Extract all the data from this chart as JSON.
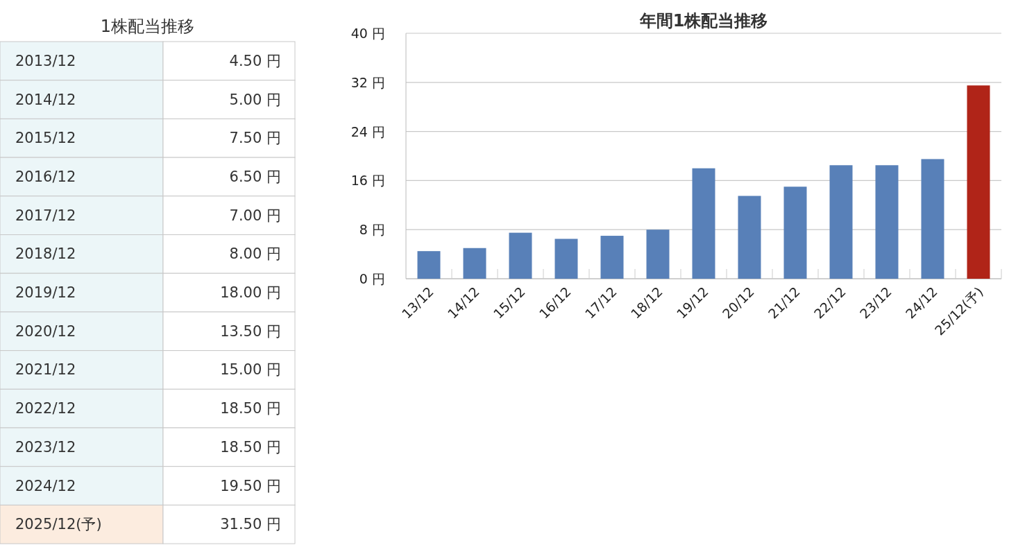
{
  "chart_data": [
    {
      "type": "other",
      "title": "1株配当推移",
      "categories": [
        "2013/12",
        "2014/12",
        "2015/12",
        "2016/12",
        "2017/12",
        "2018/12",
        "2019/12",
        "2020/12",
        "2021/12",
        "2022/12",
        "2023/12",
        "2024/12",
        "2025/12(予)"
      ],
      "value_labels": [
        "4.50 円",
        "5.00 円",
        "7.50 円",
        "6.50 円",
        "7.00 円",
        "8.00 円",
        "18.00 円",
        "13.50 円",
        "15.00 円",
        "18.50 円",
        "18.50 円",
        "19.50 円",
        "31.50 円"
      ],
      "subtitle": null
    },
    {
      "type": "bar",
      "title": "年間1株配当推移",
      "categories": [
        "13/12",
        "14/12",
        "15/12",
        "16/12",
        "17/12",
        "18/12",
        "19/12",
        "20/12",
        "21/12",
        "22/12",
        "23/12",
        "24/12",
        "25/12(予)"
      ],
      "values": [
        4.5,
        5,
        7.5,
        6.5,
        7,
        8,
        18,
        13.5,
        15,
        18.5,
        18.5,
        19.5,
        31.5
      ],
      "colors": [
        "#5880b8",
        "#5880b8",
        "#5880b8",
        "#5880b8",
        "#5880b8",
        "#5880b8",
        "#5880b8",
        "#5880b8",
        "#5880b8",
        "#5880b8",
        "#5880b8",
        "#5880b8",
        "#b02418"
      ],
      "ylim": [
        0,
        40
      ],
      "yticks": [
        {
          "value": 0,
          "label": "0 円"
        },
        {
          "value": 8,
          "label": "8 円"
        },
        {
          "value": 16,
          "label": "16 円"
        },
        {
          "value": 24,
          "label": "24 円"
        },
        {
          "value": 32,
          "label": "32 円"
        },
        {
          "value": 40,
          "label": "40 円"
        }
      ],
      "grid": "y"
    }
  ]
}
